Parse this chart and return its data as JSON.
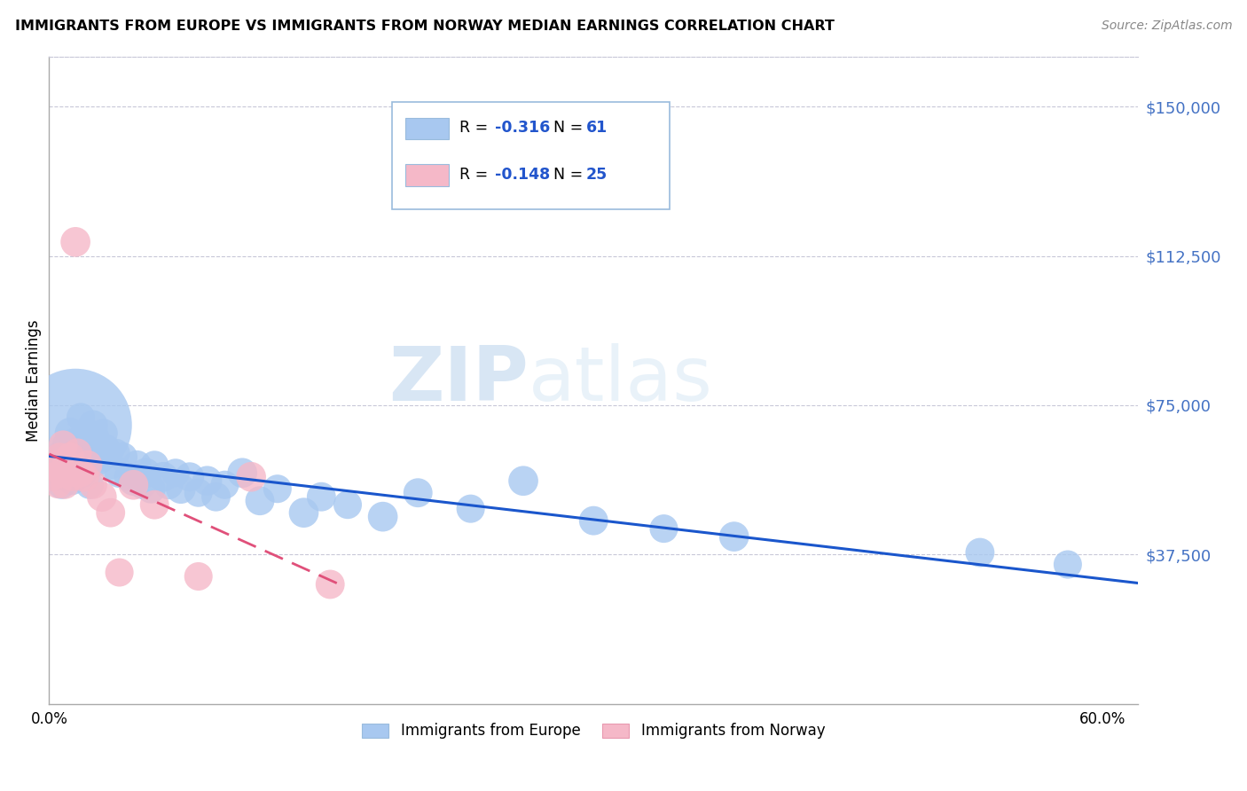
{
  "title": "IMMIGRANTS FROM EUROPE VS IMMIGRANTS FROM NORWAY MEDIAN EARNINGS CORRELATION CHART",
  "source": "Source: ZipAtlas.com",
  "ylabel": "Median Earnings",
  "ytick_labels": [
    "$150,000",
    "$112,500",
    "$75,000",
    "$37,500"
  ],
  "ytick_values": [
    150000,
    112500,
    75000,
    37500
  ],
  "ylim": [
    0,
    162500
  ],
  "xlim": [
    0.0,
    0.62
  ],
  "legend_r1": "-0.316",
  "legend_n1": "61",
  "legend_r2": "-0.148",
  "legend_n2": "25",
  "color_europe": "#a8c8f0",
  "color_norway": "#f5b8c8",
  "color_europe_line": "#1a56cc",
  "color_norway_line": "#e0507a",
  "watermark_zip": "ZIP",
  "watermark_atlas": "atlas",
  "europe_x": [
    0.003,
    0.005,
    0.007,
    0.008,
    0.009,
    0.01,
    0.011,
    0.012,
    0.013,
    0.014,
    0.015,
    0.016,
    0.017,
    0.018,
    0.019,
    0.02,
    0.021,
    0.022,
    0.023,
    0.025,
    0.026,
    0.027,
    0.028,
    0.03,
    0.031,
    0.032,
    0.035,
    0.038,
    0.04,
    0.042,
    0.045,
    0.048,
    0.05,
    0.053,
    0.055,
    0.058,
    0.06,
    0.065,
    0.068,
    0.072,
    0.075,
    0.08,
    0.085,
    0.09,
    0.095,
    0.1,
    0.11,
    0.12,
    0.13,
    0.145,
    0.155,
    0.17,
    0.19,
    0.21,
    0.24,
    0.27,
    0.31,
    0.35,
    0.39,
    0.53,
    0.58
  ],
  "europe_y": [
    57000,
    60000,
    55000,
    63000,
    58000,
    65000,
    62000,
    68000,
    56000,
    64000,
    70000,
    66000,
    60000,
    72000,
    58000,
    65000,
    62000,
    68000,
    55000,
    70000,
    67000,
    63000,
    65000,
    62000,
    68000,
    64000,
    60000,
    63000,
    58000,
    62000,
    57000,
    56000,
    60000,
    55000,
    58000,
    54000,
    60000,
    57000,
    55000,
    58000,
    54000,
    57000,
    53000,
    56000,
    52000,
    55000,
    58000,
    51000,
    54000,
    48000,
    52000,
    50000,
    47000,
    53000,
    49000,
    56000,
    46000,
    44000,
    42000,
    38000,
    35000
  ],
  "europe_size_raw": [
    40,
    35,
    38,
    42,
    36,
    40,
    38,
    45,
    38,
    42,
    40,
    38,
    42,
    38,
    40,
    38,
    42,
    40,
    38,
    42,
    40,
    38,
    42,
    40,
    38,
    42,
    40,
    38,
    42,
    40,
    38,
    42,
    40,
    38,
    42,
    40,
    38,
    42,
    40,
    38,
    42,
    40,
    38,
    42,
    40,
    38,
    42,
    40,
    38,
    42,
    40,
    38,
    42,
    40,
    38,
    42,
    40,
    38,
    42,
    40,
    38
  ],
  "europe_big_idx": 10,
  "europe_big_size": 600,
  "norway_x": [
    0.002,
    0.004,
    0.005,
    0.006,
    0.007,
    0.008,
    0.009,
    0.01,
    0.011,
    0.012,
    0.013,
    0.015,
    0.016,
    0.018,
    0.02,
    0.022,
    0.025,
    0.03,
    0.035,
    0.04,
    0.048,
    0.06,
    0.085,
    0.115,
    0.16
  ],
  "norway_y": [
    57000,
    60000,
    55000,
    62000,
    58000,
    65000,
    55000,
    60000,
    58000,
    62000,
    57000,
    116000,
    63000,
    58000,
    57000,
    60000,
    55000,
    52000,
    48000,
    33000,
    55000,
    50000,
    32000,
    57000,
    30000
  ],
  "norway_size_raw": [
    38,
    40,
    35,
    38,
    36,
    40,
    38,
    42,
    38,
    40,
    38,
    42,
    40,
    38,
    42,
    40,
    38,
    42,
    40,
    38,
    42,
    40,
    38,
    42,
    40
  ]
}
